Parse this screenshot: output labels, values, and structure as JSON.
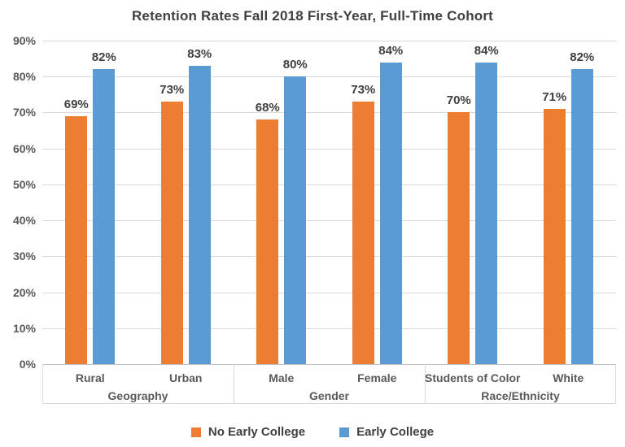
{
  "chart_data": {
    "type": "bar",
    "title": "Retention Rates Fall 2018 First-Year, Full-Time Cohort",
    "categories": [
      "Rural",
      "Urban",
      "Male",
      "Female",
      "Students of Color",
      "White"
    ],
    "groups": [
      {
        "label": "Geography",
        "categories": [
          "Rural",
          "Urban"
        ]
      },
      {
        "label": "Gender",
        "categories": [
          "Male",
          "Female"
        ]
      },
      {
        "label": "Race/Ethnicity",
        "categories": [
          "Students of Color",
          "White"
        ]
      }
    ],
    "series": [
      {
        "name": "No Early College",
        "color": "#ED7D31",
        "values": [
          69,
          73,
          68,
          73,
          70,
          71
        ]
      },
      {
        "name": "Early College",
        "color": "#5B9BD5",
        "values": [
          82,
          83,
          80,
          84,
          84,
          82
        ]
      }
    ],
    "xlabel": "",
    "ylabel": "",
    "ylim": [
      0,
      90
    ],
    "ytick_step": 10,
    "ytick_suffix": "%",
    "data_label_suffix": "%",
    "grid": true,
    "data_labels": true,
    "legend_position": "bottom"
  },
  "colors": {
    "series_orange": "#ED7D31",
    "series_blue": "#5B9BD5",
    "gridline": "#D9D9D9",
    "axis_line": "#BFBFBF",
    "axis_text": "#595959",
    "label_text": "#404040",
    "background": "#FFFFFF"
  }
}
